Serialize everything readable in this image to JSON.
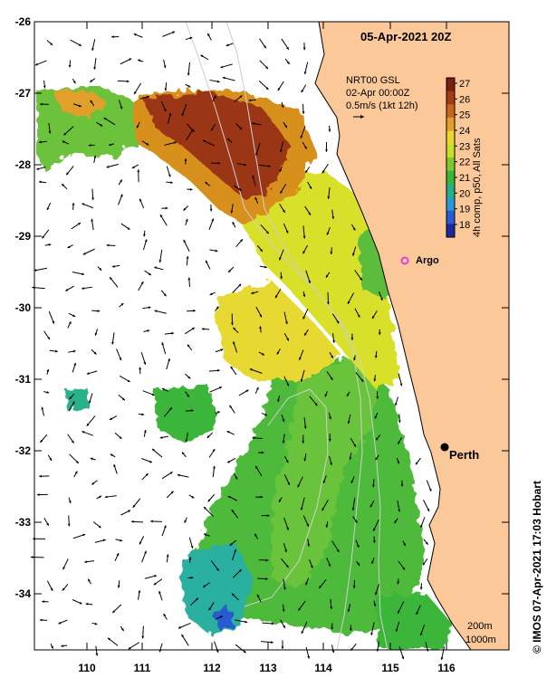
{
  "title": "05-Apr-2021 20Z",
  "current_info": {
    "line1": "NRT00 GSL",
    "line2": "02-Apr 00:00Z",
    "line3": "0.5m/s (1kt 12h)"
  },
  "colorbar": {
    "label": "4h comp, p50, All Sats",
    "ticks": [
      "27",
      "26",
      "25",
      "24",
      "23",
      "22",
      "21",
      "20",
      "19",
      "18"
    ],
    "colors": [
      "#7a1e10",
      "#a33a14",
      "#c8661c",
      "#e2a02a",
      "#e8d830",
      "#c8e02a",
      "#7ec832",
      "#3ab63a",
      "#26b08a",
      "#2a9ad6",
      "#2a5ad0",
      "#1a2a9a"
    ]
  },
  "colors": {
    "land": "#fbc89a",
    "ocean": "#ffffff",
    "coastline": "#000000"
  },
  "y_axis": {
    "ticks": [
      "-26",
      "-27",
      "-28",
      "-29",
      "-30",
      "-31",
      "-32",
      "-33",
      "-34"
    ]
  },
  "x_axis": {
    "ticks": [
      "110",
      "111",
      "112",
      "113",
      "114",
      "115",
      "116"
    ]
  },
  "markers": {
    "argo": {
      "label": "Argo",
      "color": "#e040e0"
    },
    "perth": {
      "label": "Perth"
    }
  },
  "legend_depth": {
    "line1": "200m",
    "line2": "1000m"
  },
  "credit": "© IMOS 07-Apr-2021 17:03 Hobart"
}
